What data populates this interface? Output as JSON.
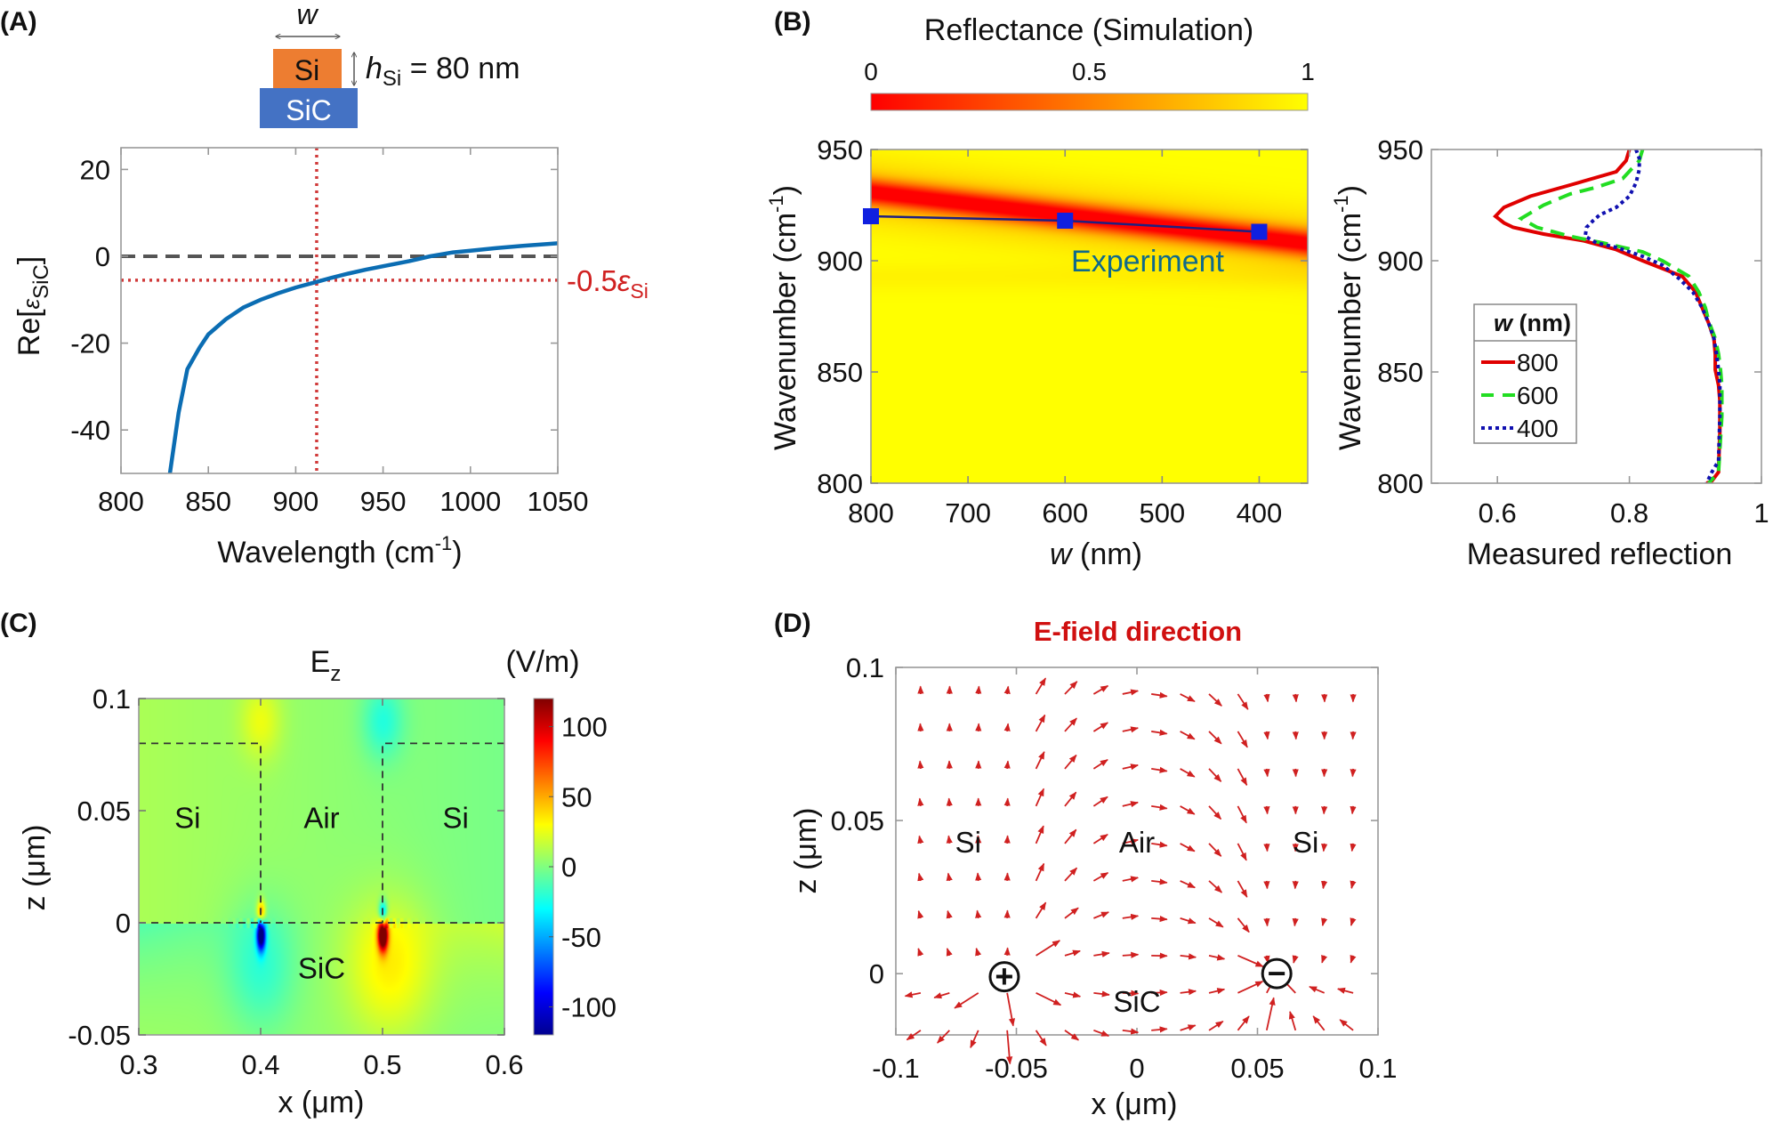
{
  "panels": {
    "A": {
      "label": "(A)",
      "schematic": {
        "width_label": "w",
        "top_layer": "Si",
        "substrate": "SiC",
        "height_var": "h",
        "height_sub": "Si",
        "height_value": " = 80 nm",
        "top_color": "#ed7d31",
        "substrate_color": "#4472c4"
      },
      "annotation": {
        "prefix": "-0.5",
        "symbol": "ε",
        "sub": "Si",
        "color": "#d02020"
      }
    },
    "B": {
      "label": "(B)",
      "experiment_label": "Experiment"
    },
    "C": {
      "label": "(C)"
    },
    "D": {
      "label": "(D)",
      "title": "E-field direction",
      "title_color": "#d01010",
      "plus_symbol": "+",
      "minus_symbol": "−"
    }
  },
  "chart_data": [
    {
      "id": "A",
      "type": "line",
      "xlabel": {
        "main": "Wavelength (cm",
        "sup": "-1",
        "end": ")"
      },
      "ylabel": {
        "main": "Re[",
        "sym": "ε",
        "sub": "SiC",
        "end": "]"
      },
      "xlim": [
        800,
        1050
      ],
      "ylim": [
        -50,
        25
      ],
      "xticks": [
        "800",
        "850",
        "900",
        "950",
        "1000",
        "1050"
      ],
      "yticks": [
        "20",
        "0",
        "-20",
        "-40"
      ],
      "series": [
        {
          "color": "#0b6db3",
          "x": [
            828,
            833,
            838,
            845,
            850,
            860,
            870,
            880,
            890,
            900,
            911,
            920,
            930,
            940,
            950,
            965,
            977,
            990,
            1000,
            1015,
            1030,
            1050
          ],
          "y": [
            -50,
            -36,
            -26,
            -21,
            -18,
            -14.5,
            -11.8,
            -10,
            -8.5,
            -7.2,
            -6,
            -5,
            -4,
            -3.1,
            -2.3,
            -1.1,
            0,
            0.9,
            1.3,
            1.9,
            2.4,
            3
          ]
        }
      ],
      "reference_lines": [
        {
          "orientation": "horizontal",
          "value": 0,
          "style": "dashed",
          "color": "#555555"
        },
        {
          "orientation": "vertical",
          "value": 912,
          "style": "dotted",
          "color": "#d03a3a"
        },
        {
          "orientation": "horizontal",
          "value": -5.5,
          "style": "dotted",
          "color": "#d03a3a"
        }
      ]
    },
    {
      "id": "B-map",
      "type": "heatmap",
      "colorbar": {
        "title": "Reflectance (Simulation)",
        "ticks": [
          "0",
          "0.5",
          "1"
        ],
        "range": [
          0,
          1
        ],
        "colormap": [
          "#ff0000",
          "#ffff00"
        ]
      },
      "xlabel": {
        "var": "w",
        "unit": " (nm)"
      },
      "ylabel": {
        "main": "Wavenumber (cm",
        "sup": "-1",
        "end": ")"
      },
      "xlim": [
        800,
        350
      ],
      "ylim": [
        800,
        950
      ],
      "xticks": [
        "800",
        "700",
        "600",
        "500",
        "400"
      ],
      "yticks": [
        "950",
        "900",
        "850",
        "800"
      ],
      "resonance_ridge": {
        "x": [
          800,
          350
        ],
        "y": [
          931,
          908
        ]
      },
      "experiment": {
        "x": [
          800,
          600,
          400
        ],
        "y": [
          920,
          918,
          913
        ],
        "marker_color": "#1020e0",
        "line_color": "#202080"
      }
    },
    {
      "id": "B-spectra",
      "type": "line",
      "xlabel": "Measured reflection",
      "ylabel": {
        "main": "Wavenumber (cm",
        "sup": "-1",
        "end": ")"
      },
      "xlim": [
        0.5,
        1
      ],
      "ylim": [
        800,
        950
      ],
      "xticks": [
        "0.6",
        "0.8",
        "1"
      ],
      "xtick_values": [
        0.6,
        0.8,
        1
      ],
      "yticks": [
        "950",
        "900",
        "850",
        "800"
      ],
      "legend": {
        "title_var": "w",
        "title_unit": " (nm)",
        "placement": "center-left"
      },
      "series": [
        {
          "name": "800",
          "color": "#e00000",
          "style": "solid",
          "y": [
            950,
            945,
            940,
            934,
            929,
            924,
            920,
            917,
            915,
            912,
            909,
            905,
            900,
            893,
            886,
            879,
            872,
            865,
            858,
            851,
            844,
            837,
            830,
            823,
            815,
            805,
            801,
            800
          ],
          "x": [
            0.8,
            0.795,
            0.78,
            0.71,
            0.65,
            0.61,
            0.597,
            0.61,
            0.624,
            0.67,
            0.73,
            0.78,
            0.82,
            0.88,
            0.9,
            0.91,
            0.92,
            0.928,
            0.93,
            0.93,
            0.935,
            0.937,
            0.937,
            0.937,
            0.936,
            0.935,
            0.925,
            0.917
          ]
        },
        {
          "name": "600",
          "color": "#22dd22",
          "style": "dashed",
          "y": [
            950,
            945,
            937,
            933,
            930,
            925,
            919,
            915,
            911,
            908,
            904,
            900,
            893,
            886,
            879,
            873,
            865,
            858,
            851,
            844,
            837,
            830,
            820,
            810,
            805,
            800
          ],
          "x": [
            0.82,
            0.815,
            0.79,
            0.75,
            0.71,
            0.67,
            0.636,
            0.66,
            0.71,
            0.76,
            0.82,
            0.85,
            0.89,
            0.905,
            0.915,
            0.92,
            0.93,
            0.935,
            0.938,
            0.94,
            0.94,
            0.94,
            0.938,
            0.936,
            0.935,
            0.92
          ]
        },
        {
          "name": "400",
          "color": "#1010b0",
          "style": "dotted",
          "y": [
            950,
            946,
            941,
            935,
            929,
            924,
            920.6,
            918,
            915,
            911,
            908,
            906,
            902,
            898,
            892,
            886,
            879,
            872,
            865,
            858,
            851,
            844,
            837,
            830,
            820,
            810,
            805,
            800
          ],
          "x": [
            0.81,
            0.815,
            0.815,
            0.81,
            0.8,
            0.78,
            0.755,
            0.745,
            0.735,
            0.733,
            0.75,
            0.78,
            0.82,
            0.85,
            0.875,
            0.896,
            0.91,
            0.92,
            0.928,
            0.932,
            0.935,
            0.937,
            0.937,
            0.937,
            0.936,
            0.935,
            0.925,
            0.917
          ]
        }
      ]
    },
    {
      "id": "C",
      "type": "heatmap",
      "title": {
        "main": "E",
        "sub": "z"
      },
      "colorbar": {
        "title": "(V/m)",
        "ticks": [
          "100",
          "50",
          "0",
          "-50",
          "-100"
        ],
        "tick_values": [
          100,
          50,
          0,
          -50,
          -100
        ],
        "range": [
          -120,
          120
        ],
        "colormap": "jet"
      },
      "xlabel": "x (μm)",
      "ylabel": "z (μm)",
      "xlim": [
        0.3,
        0.6
      ],
      "ylim": [
        -0.05,
        0.1
      ],
      "xticks": [
        "0.3",
        "0.4",
        "0.5",
        "0.6"
      ],
      "yticks": [
        "0.1",
        "0.05",
        "0",
        "-0.05"
      ],
      "boundaries": {
        "si_top_z": 0.08,
        "interface_z": 0,
        "gap_edges_x": [
          0.4,
          0.5
        ]
      },
      "regions": [
        {
          "text": "Si",
          "x": 0.34,
          "z": 0.047
        },
        {
          "text": "Air",
          "x": 0.45,
          "z": 0.047
        },
        {
          "text": "Si",
          "x": 0.56,
          "z": 0.047
        },
        {
          "text": "SiC",
          "x": 0.45,
          "z": -0.02
        }
      ]
    },
    {
      "id": "D",
      "type": "quiver",
      "xlabel": "x (μm)",
      "ylabel": "z (μm)",
      "xlim": [
        -0.1,
        0.1
      ],
      "ylim": [
        -0.02,
        0.1
      ],
      "xticks": [
        "-0.1",
        "-0.05",
        "0",
        "0.05",
        "0.1"
      ],
      "yticks": [
        "0.1",
        "0.05",
        "0"
      ],
      "arrow_color": "#d02020",
      "grid": {
        "x_start": -0.0897,
        "x_step": 0.01196,
        "x_count": 16,
        "z_start": 0.0913,
        "z_step": -0.0122,
        "z_count": 10
      },
      "charges": [
        {
          "sign": "+",
          "x": -0.055,
          "z": -0.001
        },
        {
          "sign": "-",
          "x": 0.058,
          "z": 0.0
        }
      ],
      "regions": [
        {
          "text": "Si",
          "x": -0.07,
          "z": 0.043
        },
        {
          "text": "Air",
          "x": 0.0,
          "z": 0.043
        },
        {
          "text": "Si",
          "x": 0.07,
          "z": 0.043
        },
        {
          "text": "SiC",
          "x": 0.0,
          "z": -0.009
        }
      ]
    }
  ]
}
